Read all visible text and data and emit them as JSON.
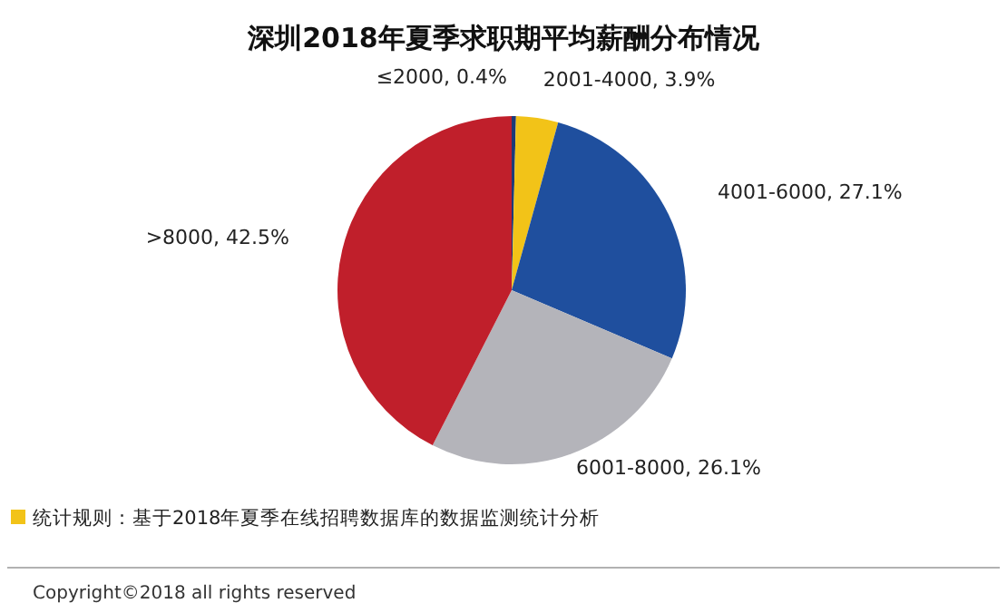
{
  "chart_data": {
    "type": "pie",
    "title": "深圳2018年夏季求职期平均薪酬分布情况",
    "categories": [
      "≤2000",
      "2001-4000",
      "4001-6000",
      "6001-8000",
      ">8000"
    ],
    "values": [
      0.4,
      3.9,
      27.1,
      26.1,
      42.5
    ],
    "value_labels": [
      "0.4%",
      "3.9%",
      "27.1%",
      "26.1%",
      "42.5%"
    ],
    "colors": [
      "#1d3a78",
      "#f2c318",
      "#1f4f9e",
      "#b4b4ba",
      "#c01f2b"
    ],
    "annotations": [
      "统计规则：基于2018年夏季在线招聘数据库的数据监测统计分析",
      "Copyright©2018 all rights reserved"
    ]
  }
}
